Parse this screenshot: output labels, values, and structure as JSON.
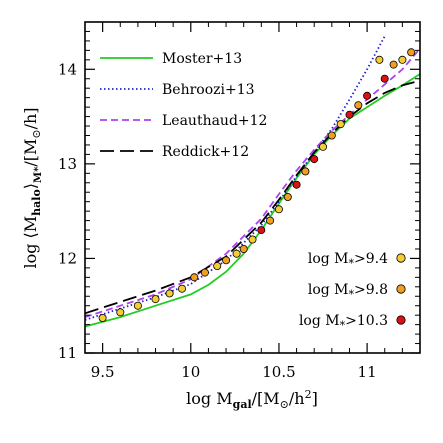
{
  "chart_data": {
    "type": "line",
    "xlabel": "log M_gal/[M_⊙/h²]",
    "ylabel": "log ⟨M_halo⟩_M*/[M_⊙/h]",
    "xlim": [
      9.4,
      11.3
    ],
    "ylim": [
      11.0,
      14.5
    ],
    "x_ticks": [
      9.5,
      10,
      10.5,
      11
    ],
    "x_tick_labels": [
      "9.5",
      "10",
      "10.5",
      "11"
    ],
    "y_ticks": [
      11,
      12,
      13,
      14
    ],
    "y_tick_labels": [
      "11",
      "12",
      "13",
      "14"
    ],
    "legend_position": "top-left",
    "series": [
      {
        "name": "Moster+13",
        "color": "#22cc22",
        "style": "solid",
        "x": [
          9.4,
          9.6,
          9.8,
          10.0,
          10.1,
          10.2,
          10.3,
          10.4,
          10.5,
          10.6,
          10.7,
          10.8,
          10.9,
          11.0,
          11.1,
          11.2,
          11.3
        ],
        "y": [
          11.28,
          11.38,
          11.5,
          11.62,
          11.72,
          11.86,
          12.05,
          12.3,
          12.58,
          12.85,
          13.1,
          13.3,
          13.48,
          13.6,
          13.72,
          13.83,
          13.95
        ]
      },
      {
        "name": "Behroozi+13",
        "color": "#2222cc",
        "style": "dotted",
        "x": [
          9.4,
          9.6,
          9.8,
          10.0,
          10.2,
          10.4,
          10.5,
          10.6,
          10.7,
          10.8,
          10.9,
          11.0,
          11.1
        ],
        "y": [
          11.35,
          11.47,
          11.59,
          11.73,
          11.98,
          12.35,
          12.6,
          12.87,
          13.12,
          13.37,
          13.68,
          14.0,
          14.35
        ]
      },
      {
        "name": "Leauthaud+12",
        "color": "#aa44ee",
        "style": "dashed",
        "x": [
          9.4,
          9.6,
          9.8,
          10.0,
          10.2,
          10.4,
          10.5,
          10.6,
          10.7,
          10.8,
          10.9,
          11.0,
          11.1,
          11.2,
          11.3
        ],
        "y": [
          11.38,
          11.5,
          11.62,
          11.78,
          12.05,
          12.42,
          12.68,
          12.93,
          13.15,
          13.35,
          13.52,
          13.68,
          13.84,
          14.0,
          14.22
        ]
      },
      {
        "name": "Reddick+12",
        "color": "#000000",
        "style": "longdash",
        "x": [
          9.4,
          9.6,
          9.8,
          10.0,
          10.2,
          10.4,
          10.5,
          10.6,
          10.7,
          10.8,
          10.9,
          11.0,
          11.1,
          11.2,
          11.3
        ],
        "y": [
          11.42,
          11.54,
          11.66,
          11.8,
          12.02,
          12.38,
          12.62,
          12.88,
          13.12,
          13.32,
          13.5,
          13.64,
          13.75,
          13.83,
          13.88
        ]
      }
    ],
    "points": {
      "series_labels": [
        {
          "name": "log M*>9.4",
          "color": "#f5cc33"
        },
        {
          "name": "log M*>9.8",
          "color": "#f0a020"
        },
        {
          "name": "log M*>10.3",
          "color": "#dd1111"
        }
      ],
      "data": [
        {
          "x": 9.5,
          "y": 11.37,
          "s": 0
        },
        {
          "x": 9.6,
          "y": 11.43,
          "s": 0
        },
        {
          "x": 9.7,
          "y": 11.5,
          "s": 0
        },
        {
          "x": 9.8,
          "y": 11.57,
          "s": 0
        },
        {
          "x": 9.88,
          "y": 11.63,
          "s": 0
        },
        {
          "x": 9.95,
          "y": 11.68,
          "s": 0
        },
        {
          "x": 10.02,
          "y": 11.8,
          "s": 1
        },
        {
          "x": 10.08,
          "y": 11.85,
          "s": 1
        },
        {
          "x": 10.15,
          "y": 11.92,
          "s": 0
        },
        {
          "x": 10.2,
          "y": 11.98,
          "s": 1
        },
        {
          "x": 10.26,
          "y": 12.05,
          "s": 0
        },
        {
          "x": 10.3,
          "y": 12.1,
          "s": 1
        },
        {
          "x": 10.35,
          "y": 12.2,
          "s": 0
        },
        {
          "x": 10.4,
          "y": 12.3,
          "s": 2
        },
        {
          "x": 10.45,
          "y": 12.4,
          "s": 1
        },
        {
          "x": 10.5,
          "y": 12.52,
          "s": 0
        },
        {
          "x": 10.55,
          "y": 12.65,
          "s": 1
        },
        {
          "x": 10.6,
          "y": 12.78,
          "s": 2
        },
        {
          "x": 10.65,
          "y": 12.92,
          "s": 1
        },
        {
          "x": 10.7,
          "y": 13.05,
          "s": 2
        },
        {
          "x": 10.75,
          "y": 13.18,
          "s": 0
        },
        {
          "x": 10.8,
          "y": 13.3,
          "s": 1
        },
        {
          "x": 10.85,
          "y": 13.42,
          "s": 0
        },
        {
          "x": 10.9,
          "y": 13.52,
          "s": 2
        },
        {
          "x": 10.95,
          "y": 13.62,
          "s": 1
        },
        {
          "x": 11.0,
          "y": 13.72,
          "s": 2
        },
        {
          "x": 11.07,
          "y": 14.1,
          "s": 0
        },
        {
          "x": 11.1,
          "y": 13.9,
          "s": 2
        },
        {
          "x": 11.15,
          "y": 14.05,
          "s": 1
        },
        {
          "x": 11.2,
          "y": 14.1,
          "s": 0
        },
        {
          "x": 11.25,
          "y": 14.18,
          "s": 1
        }
      ]
    }
  }
}
